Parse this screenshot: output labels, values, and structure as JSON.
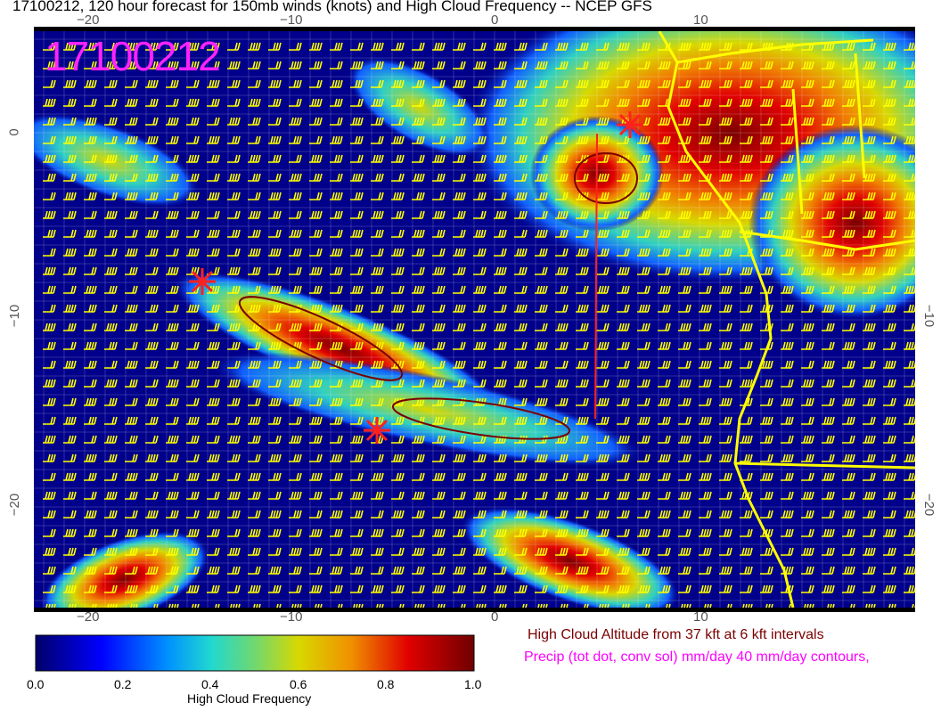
{
  "title": "17100212, 120 hour forecast for 150mb winds (knots) and High Cloud Frequency -- NCEP GFS",
  "map": {
    "date_stamp": "17100212",
    "lon_ticks": [
      "−20",
      "−10",
      "0",
      "10"
    ],
    "lat_ticks_left": [
      "0",
      "−10",
      "−20"
    ],
    "lat_ticks_right": [
      "−10",
      "−20"
    ],
    "background_color": "#00008b",
    "barb_color": "#ffff00",
    "coast_color": "#ffff00",
    "marker_color": "#ff2020"
  },
  "colorbar": {
    "label": "High Cloud Frequency",
    "ticks": [
      "0.0",
      "0.2",
      "0.4",
      "0.6",
      "0.8",
      "1.0"
    ],
    "range": [
      0,
      1
    ]
  },
  "legend": {
    "altitude": "High Cloud Altitude from 37 kft at 6 kft intervals",
    "precip": "Precip (tot dot, conv sol) mm/day 40 mm/day contours,"
  }
}
